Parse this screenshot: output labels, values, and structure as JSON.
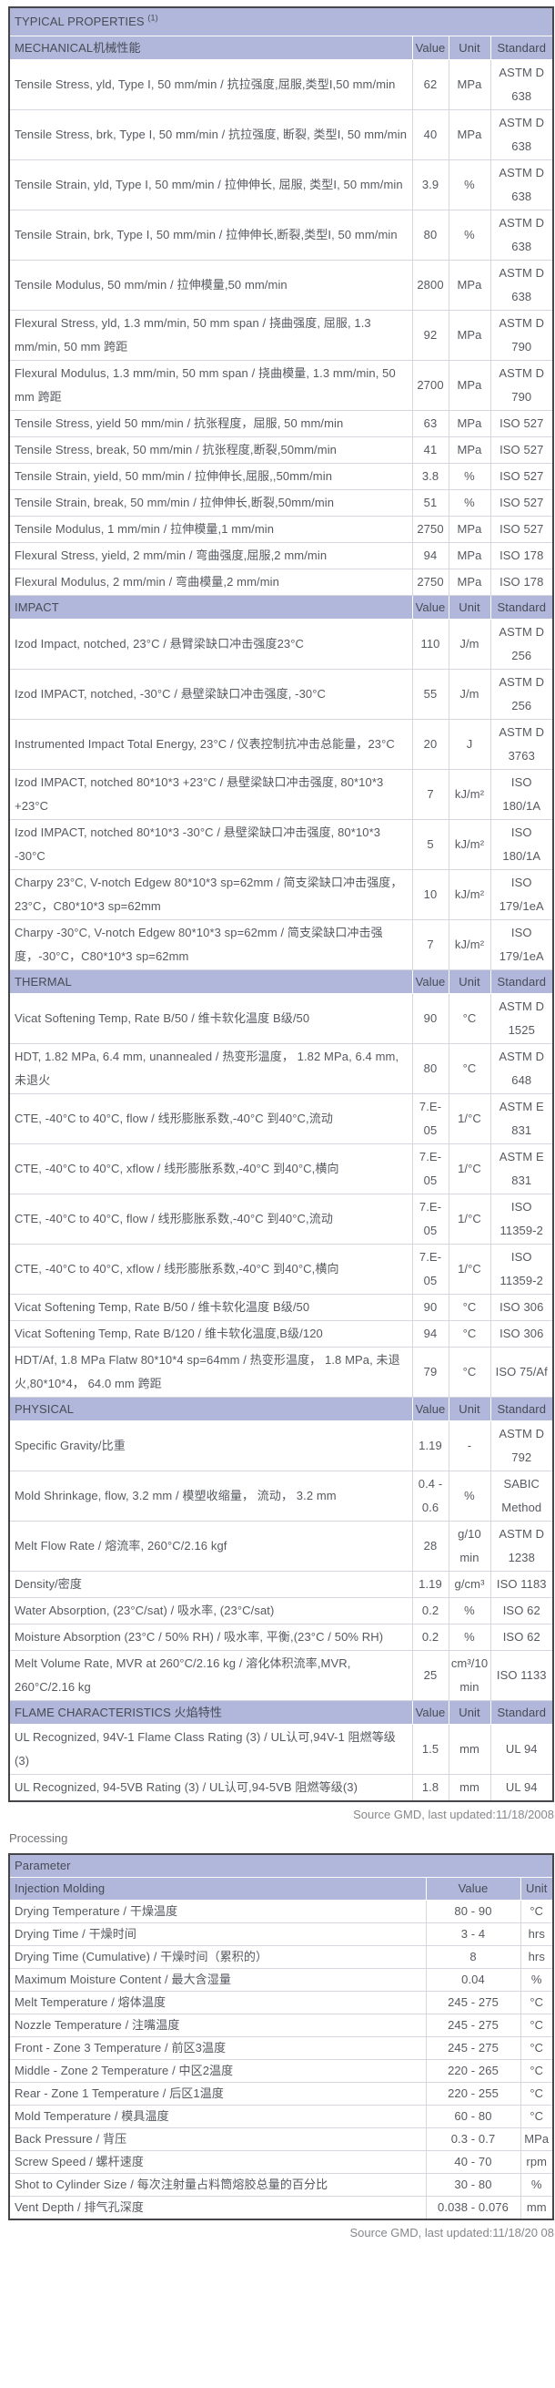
{
  "colors": {
    "band_bg": "#b0b7da",
    "outer_border": "#46464a",
    "grid_line": "#d5d7de",
    "text": "#56595f",
    "muted_text": "#85878b"
  },
  "table1": {
    "title": "TYPICAL PROPERTIES",
    "title_sup": "(1)",
    "columns": [
      "Value",
      "Unit",
      "Standard"
    ],
    "sections": [
      {
        "label": "MECHANICAL机械性能",
        "rows": [
          {
            "property": "Tensile Stress, yld, Type I, 50 mm/min / 抗拉强度,屈服,类型I,50 mm/min",
            "value": "62",
            "unit": "MPa",
            "standard": "ASTM D 638"
          },
          {
            "property": "Tensile Stress, brk, Type I, 50 mm/min / 抗拉强度, 断裂, 类型I, 50 mm/min",
            "value": "40",
            "unit": "MPa",
            "standard": "ASTM D 638"
          },
          {
            "property": "Tensile Strain, yld, Type I, 50 mm/min / 拉伸伸长, 屈服, 类型I, 50 mm/min",
            "value": "3.9",
            "unit": "%",
            "standard": "ASTM D 638"
          },
          {
            "property": "Tensile Strain, brk, Type I, 50 mm/min / 拉伸伸长,断裂,类型I, 50 mm/min",
            "value": "80",
            "unit": "%",
            "standard": "ASTM D 638"
          },
          {
            "property": "Tensile Modulus, 50 mm/min / 拉伸模量,50 mm/min",
            "value": "2800",
            "unit": "MPa",
            "standard": "ASTM D 638"
          },
          {
            "property": "Flexural Stress, yld, 1.3 mm/min, 50 mm span / 挠曲强度, 屈服, 1.3 mm/min, 50 mm 跨距",
            "value": "92",
            "unit": "MPa",
            "standard": "ASTM D 790"
          },
          {
            "property": "Flexural Modulus, 1.3 mm/min, 50 mm span / 挠曲模量, 1.3 mm/min, 50 mm 跨距",
            "value": "2700",
            "unit": "MPa",
            "standard": "ASTM D 790"
          },
          {
            "property": "Tensile Stress, yield 50 mm/min / 抗张程度，屈服, 50 mm/min",
            "value": "63",
            "unit": "MPa",
            "standard": "ISO 527"
          },
          {
            "property": "Tensile Stress, break, 50 mm/min / 抗张程度,断裂,50mm/min",
            "value": "41",
            "unit": "MPa",
            "standard": "ISO 527"
          },
          {
            "property": "Tensile Strain, yield, 50 mm/min / 拉伸伸长,屈服,,50mm/min",
            "value": "3.8",
            "unit": "%",
            "standard": "ISO 527"
          },
          {
            "property": "Tensile Strain, break, 50 mm/min / 拉伸伸长,断裂,50mm/min",
            "value": "51",
            "unit": "%",
            "standard": "ISO 527"
          },
          {
            "property": "Tensile Modulus, 1 mm/min / 拉伸模量,1 mm/min",
            "value": "2750",
            "unit": "MPa",
            "standard": "ISO 527"
          },
          {
            "property": "Flexural Stress, yield, 2 mm/min / 弯曲强度,屈服,2 mm/min",
            "value": "94",
            "unit": "MPa",
            "standard": "ISO 178"
          },
          {
            "property": "Flexural Modulus, 2 mm/min / 弯曲模量,2 mm/min",
            "value": "2750",
            "unit": "MPa",
            "standard": "ISO 178"
          }
        ]
      },
      {
        "label": "IMPACT",
        "rows": [
          {
            "property": "Izod Impact, notched, 23°C / 悬臂梁缺口冲击强度23°C",
            "value": "110",
            "unit": "J/m",
            "standard": "ASTM D 256"
          },
          {
            "property": "Izod IMPACT, notched, -30°C / 悬壁梁缺口冲击强度, -30°C",
            "value": "55",
            "unit": "J/m",
            "standard": "ASTM D 256"
          },
          {
            "property": "Instrumented Impact Total Energy, 23°C / 仪表控制抗冲击总能量，23°C",
            "value": "20",
            "unit": "J",
            "standard": "ASTM D 3763"
          },
          {
            "property": "Izod IMPACT, notched 80*10*3 +23°C / 悬壁梁缺口冲击强度, 80*10*3 +23°C",
            "value": "7",
            "unit": "kJ/m²",
            "standard": "ISO 180/1A"
          },
          {
            "property": "Izod IMPACT, notched 80*10*3 -30°C / 悬壁梁缺口冲击强度, 80*10*3 -30°C",
            "value": "5",
            "unit": "kJ/m²",
            "standard": "ISO 180/1A"
          },
          {
            "property": "Charpy 23°C, V-notch Edgew 80*10*3 sp=62mm / 简支梁缺口冲击强度，23°C，C80*10*3 sp=62mm",
            "value": "10",
            "unit": "kJ/m²",
            "standard": "ISO 179/1eA"
          },
          {
            "property": "Charpy -30°C, V-notch Edgew 80*10*3 sp=62mm / 简支梁缺口冲击强度，-30°C，C80*10*3 sp=62mm",
            "value": "7",
            "unit": "kJ/m²",
            "standard": "ISO 179/1eA"
          }
        ]
      },
      {
        "label": "THERMAL",
        "rows": [
          {
            "property": "Vicat Softening Temp, Rate B/50 / 维卡软化温度 B级/50",
            "value": "90",
            "unit": "°C",
            "standard": "ASTM D 1525"
          },
          {
            "property": "HDT, 1.82 MPa, 6.4 mm, unannealed / 热变形温度， 1.82 MPa, 6.4 mm, 未退火",
            "value": "80",
            "unit": "°C",
            "standard": "ASTM D 648"
          },
          {
            "property": "CTE, -40°C to 40°C, flow / 线形膨胀系数,-40°C 到40°C,流动",
            "value": "7.E-05",
            "unit": "1/°C",
            "standard": "ASTM E 831"
          },
          {
            "property": "CTE, -40°C to 40°C, xflow / 线形膨胀系数,-40°C 到40°C,横向",
            "value": "7.E-05",
            "unit": "1/°C",
            "standard": "ASTM E 831"
          },
          {
            "property": "CTE, -40°C to 40°C, flow / 线形膨胀系数,-40°C 到40°C,流动",
            "value": "7.E-05",
            "unit": "1/°C",
            "standard": "ISO 11359-2"
          },
          {
            "property": "CTE, -40°C to 40°C, xflow / 线形膨胀系数,-40°C 到40°C,横向",
            "value": "7.E-05",
            "unit": "1/°C",
            "standard": "ISO 11359-2"
          },
          {
            "property": "Vicat Softening Temp, Rate B/50 / 维卡软化温度 B级/50",
            "value": "90",
            "unit": "°C",
            "standard": "ISO 306"
          },
          {
            "property": "Vicat Softening Temp, Rate B/120 / 维卡软化温度,B级/120",
            "value": "94",
            "unit": "°C",
            "standard": "ISO 306"
          },
          {
            "property": "HDT/Af, 1.8 MPa Flatw 80*10*4 sp=64mm / 热变形温度， 1.8 MPa, 未退火,80*10*4， 64.0 mm 跨距",
            "value": "79",
            "unit": "°C",
            "standard": "ISO 75/Af"
          }
        ]
      },
      {
        "label": "PHYSICAL",
        "rows": [
          {
            "property": "Specific Gravity/比重",
            "value": "1.19",
            "unit": "-",
            "standard": "ASTM D 792"
          },
          {
            "property": "Mold Shrinkage, flow, 3.2 mm / 模塑收缩量， 流动， 3.2 mm",
            "value": "0.4 - 0.6",
            "unit": "%",
            "standard": "SABIC Method"
          },
          {
            "property": "Melt Flow Rate / 熔流率, 260°C/2.16 kgf",
            "value": "28",
            "unit": "g/10 min",
            "standard": "ASTM D 1238"
          },
          {
            "property": "Density/密度",
            "value": "1.19",
            "unit": "g/cm³",
            "standard": "ISO 1183"
          },
          {
            "property": "Water Absorption, (23°C/sat) / 吸水率, (23°C/sat)",
            "value": "0.2",
            "unit": "%",
            "standard": "ISO 62"
          },
          {
            "property": "Moisture Absorption (23°C / 50% RH) / 吸水率, 平衡,(23°C / 50% RH)",
            "value": "0.2",
            "unit": "%",
            "standard": "ISO 62"
          },
          {
            "property": "Melt Volume Rate, MVR at 260°C/2.16 kg / 溶化体积流率,MVR, 260°C/2.16 kg",
            "value": "25",
            "unit": "cm³/10 min",
            "standard": "ISO 1133"
          }
        ]
      },
      {
        "label": "FLAME CHARACTERISTICS 火焰特性",
        "rows": [
          {
            "property": "UL Recognized, 94V-1 Flame Class Rating (3) / UL认可,94V-1 阻燃等级(3)",
            "value": "1.5",
            "unit": "mm",
            "standard": "UL 94"
          },
          {
            "property": "UL Recognized, 94-5VB Rating (3) / UL认可,94-5VB 阻燃等级(3)",
            "value": "1.8",
            "unit": "mm",
            "standard": "UL 94"
          }
        ]
      }
    ],
    "footer": "Source GMD, last updated:11/18/2008"
  },
  "processing": {
    "heading": "Processing",
    "param_header": "Parameter",
    "subheader_label": "Injection Molding",
    "columns": [
      "Value",
      "Unit"
    ],
    "rows": [
      {
        "property": "Drying Temperature / 干燥温度",
        "value": "80 - 90",
        "unit": "°C"
      },
      {
        "property": "Drying Time / 干燥时间",
        "value": "3 - 4",
        "unit": "hrs"
      },
      {
        "property": "Drying Time (Cumulative) / 干燥时间（累积的）",
        "value": "8",
        "unit": "hrs"
      },
      {
        "property": "Maximum Moisture Content / 最大含湿量",
        "value": "0.04",
        "unit": "%"
      },
      {
        "property": "Melt Temperature / 熔体温度",
        "value": "245 - 275",
        "unit": "°C"
      },
      {
        "property": "Nozzle Temperature / 注嘴温度",
        "value": "245 - 275",
        "unit": "°C"
      },
      {
        "property": "Front - Zone 3 Temperature / 前区3温度",
        "value": "245 - 275",
        "unit": "°C"
      },
      {
        "property": "Middle - Zone 2 Temperature / 中区2温度",
        "value": "220 - 265",
        "unit": "°C"
      },
      {
        "property": "Rear - Zone 1 Temperature / 后区1温度",
        "value": "220 - 255",
        "unit": "°C"
      },
      {
        "property": "Mold Temperature / 模具温度",
        "value": "60 - 80",
        "unit": "°C"
      },
      {
        "property": "Back Pressure / 背压",
        "value": "0.3 - 0.7",
        "unit": "MPa"
      },
      {
        "property": "Screw Speed / 螺杆速度",
        "value": "40 - 70",
        "unit": "rpm"
      },
      {
        "property": "Shot to Cylinder Size / 每次注射量占料筒熔胶总量的百分比",
        "value": "30 - 80",
        "unit": "%"
      },
      {
        "property": "Vent Depth / 排气孔深度",
        "value": "0.038 - 0.076",
        "unit": "mm"
      }
    ],
    "footer": "Source GMD, last updated:11/18/20 08"
  }
}
